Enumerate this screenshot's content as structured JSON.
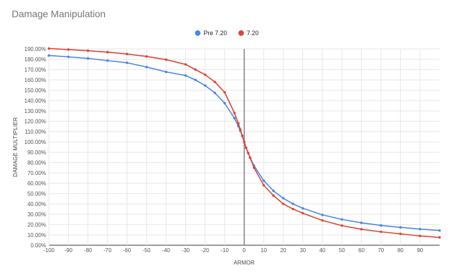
{
  "chart_data": {
    "type": "line",
    "title": "Damage Manipulation",
    "xlabel": "ARMOR",
    "ylabel": "DAMAGE MULTIPLIER",
    "xlim": [
      -100,
      100
    ],
    "ylim": [
      0,
      1.9
    ],
    "grid": true,
    "legend_position": "top",
    "x_ticks": [
      -100,
      -90,
      -80,
      -70,
      -60,
      -50,
      -40,
      -30,
      -20,
      -10,
      0,
      10,
      20,
      30,
      40,
      50,
      60,
      70,
      80,
      90
    ],
    "y_ticks": [
      "0.00%",
      "10.00%",
      "20.00%",
      "30.00%",
      "40.00%",
      "50.00%",
      "60.00%",
      "70.00%",
      "80.00%",
      "90.00%",
      "100.00%",
      "110.00%",
      "120.00%",
      "130.00%",
      "140.00%",
      "150.00%",
      "160.00%",
      "170.00%",
      "180.00%",
      "190.00%"
    ],
    "x": [
      -100,
      -90,
      -80,
      -70,
      -60,
      -50,
      -40,
      -30,
      -25,
      -20,
      -15,
      -10,
      -5,
      -3,
      -2,
      -1,
      0,
      1,
      2,
      3,
      5,
      10,
      15,
      20,
      25,
      30,
      40,
      50,
      60,
      70,
      80,
      90,
      100
    ],
    "series": [
      {
        "name": "Pre 7.20",
        "color": "#4a86e8",
        "values": [
          1.8357,
          1.8235,
          1.8077,
          1.7865,
          1.766,
          1.7246,
          1.6774,
          1.6429,
          1.6,
          1.5455,
          1.4737,
          1.375,
          1.2308,
          1.1524,
          1.1071,
          1.0566,
          1.0,
          0.9434,
          0.8929,
          0.8475,
          0.7692,
          0.625,
          0.5263,
          0.4545,
          0.4,
          0.3571,
          0.2941,
          0.25,
          0.2174,
          0.1923,
          0.1724,
          0.1563,
          0.1429
        ]
      },
      {
        "name": "7.20",
        "color": "#db4437",
        "values": [
          1.9043,
          1.8943,
          1.8826,
          1.8684,
          1.8507,
          1.8276,
          1.7959,
          1.75,
          1.7,
          1.65,
          1.58,
          1.48,
          1.28,
          1.18,
          1.12,
          1.06,
          1.0,
          0.9434,
          0.8929,
          0.8475,
          0.75,
          0.58,
          0.48,
          0.4,
          0.35,
          0.31,
          0.24,
          0.19,
          0.155,
          0.13,
          0.11,
          0.09,
          0.076
        ]
      }
    ]
  }
}
